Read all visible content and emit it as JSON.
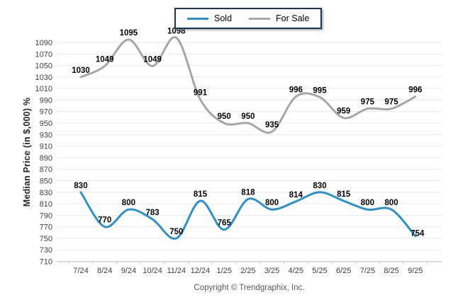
{
  "chart_data": {
    "type": "line",
    "categories": [
      "7/24",
      "8/24",
      "9/24",
      "10/24",
      "11/24",
      "12/24",
      "1/25",
      "2/25",
      "3/25",
      "4/25",
      "5/25",
      "6/25",
      "7/25",
      "8/25",
      "9/25"
    ],
    "series": [
      {
        "name": "Sold",
        "color": "#2c8fce",
        "values": [
          830,
          770,
          800,
          783,
          750,
          815,
          765,
          818,
          800,
          814,
          830,
          815,
          800,
          800,
          754
        ]
      },
      {
        "name": "For Sale",
        "color": "#a6a6a6",
        "values": [
          1030,
          1049,
          1095,
          1049,
          1098,
          991,
          950,
          950,
          935,
          996,
          995,
          959,
          975,
          975,
          996
        ]
      }
    ],
    "title": "",
    "xlabel": "",
    "ylabel": "Median Price (in $,000) %",
    "ylim": [
      710,
      1090
    ],
    "ytick_step": 20,
    "grid": true,
    "legend_position": "top-center",
    "gridline_color": "#e8e8e8",
    "axis_line_color": "#c0c0c0",
    "tick_text_color": "#3f3f3f",
    "legend_border_color": "#17365d"
  },
  "footer": {
    "copyright": "Copyright © Trendgraphix, Inc."
  }
}
